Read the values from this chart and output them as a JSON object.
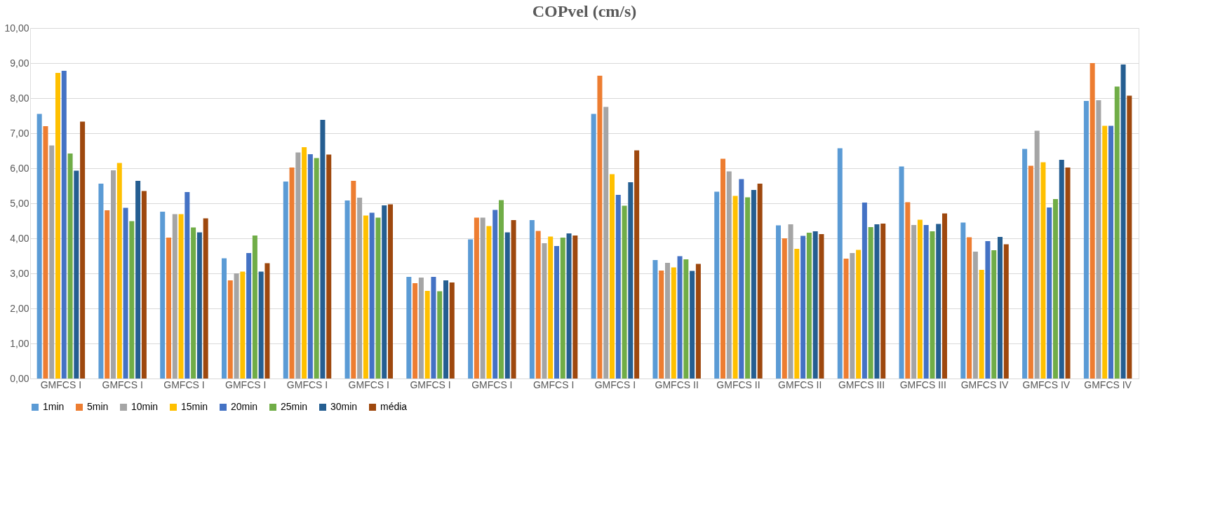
{
  "chart_data": {
    "type": "bar",
    "title": "COPvel (cm/s)",
    "categories": [
      "GMFCS I",
      "GMFCS I",
      "GMFCS I",
      "GMFCS I",
      "GMFCS I",
      "GMFCS I",
      "GMFCS I",
      "GMFCS I",
      "GMFCS I",
      "GMFCS I",
      "GMFCS II",
      "GMFCS II",
      "GMFCS II",
      "GMFCS III",
      "GMFCS III",
      "GMFCS IV",
      "GMFCS IV",
      "GMFCS IV"
    ],
    "series": [
      {
        "name": "1min",
        "color": "#5b9bd5",
        "values": [
          7.55,
          5.56,
          4.76,
          3.43,
          5.62,
          5.08,
          2.9,
          3.97,
          4.52,
          7.55,
          3.38,
          5.33,
          4.37,
          6.57,
          6.05,
          4.45,
          6.55,
          7.92
        ]
      },
      {
        "name": "5min",
        "color": "#ed7d31",
        "values": [
          7.2,
          4.8,
          4.02,
          2.8,
          6.02,
          5.64,
          2.72,
          4.59,
          4.21,
          8.64,
          3.08,
          6.27,
          4.0,
          3.42,
          5.03,
          4.03,
          6.07,
          9.0
        ]
      },
      {
        "name": "10min",
        "color": "#a5a5a5",
        "values": [
          6.65,
          5.94,
          4.69,
          3.0,
          6.45,
          5.16,
          2.88,
          4.59,
          3.86,
          7.75,
          3.3,
          5.91,
          4.4,
          3.58,
          4.38,
          3.62,
          7.07,
          7.94
        ]
      },
      {
        "name": "15min",
        "color": "#ffc000",
        "values": [
          8.72,
          6.15,
          4.69,
          3.05,
          6.6,
          4.65,
          2.5,
          4.35,
          4.05,
          5.83,
          3.17,
          5.21,
          3.7,
          3.67,
          4.53,
          3.1,
          6.17,
          7.21
        ]
      },
      {
        "name": "20min",
        "color": "#4472c4",
        "values": [
          8.78,
          4.87,
          5.32,
          3.58,
          6.4,
          4.73,
          2.9,
          4.81,
          3.78,
          5.24,
          3.49,
          5.69,
          4.07,
          5.02,
          4.38,
          3.92,
          4.88,
          7.21
        ]
      },
      {
        "name": "25min",
        "color": "#70ad47",
        "values": [
          6.42,
          4.49,
          4.31,
          4.08,
          6.29,
          4.59,
          2.49,
          5.09,
          4.02,
          4.93,
          3.4,
          5.17,
          4.16,
          4.32,
          4.2,
          3.66,
          5.12,
          8.33
        ]
      },
      {
        "name": "30min",
        "color": "#255e91",
        "values": [
          5.93,
          5.64,
          4.17,
          3.05,
          7.38,
          4.94,
          2.8,
          4.17,
          4.14,
          5.6,
          3.07,
          5.38,
          4.2,
          4.4,
          4.41,
          4.04,
          6.24,
          8.96
        ]
      },
      {
        "name": "média",
        "color": "#9e480e",
        "values": [
          7.33,
          5.35,
          4.57,
          3.29,
          6.39,
          4.97,
          2.74,
          4.52,
          4.08,
          6.51,
          3.27,
          5.56,
          4.12,
          4.42,
          4.71,
          3.83,
          6.02,
          8.07
        ]
      }
    ],
    "ylim": [
      0,
      10
    ],
    "yticks": [
      {
        "value": 0,
        "label": "0,00"
      },
      {
        "value": 1,
        "label": "1,00"
      },
      {
        "value": 2,
        "label": "2,00"
      },
      {
        "value": 3,
        "label": "3,00"
      },
      {
        "value": 4,
        "label": "4,00"
      },
      {
        "value": 5,
        "label": "5,00"
      },
      {
        "value": 6,
        "label": "6,00"
      },
      {
        "value": 7,
        "label": "7,00"
      },
      {
        "value": 8,
        "label": "8,00"
      },
      {
        "value": 9,
        "label": "9,00"
      },
      {
        "value": 10,
        "label": "10,00"
      }
    ],
    "grid": "y",
    "legend": "bottom"
  }
}
